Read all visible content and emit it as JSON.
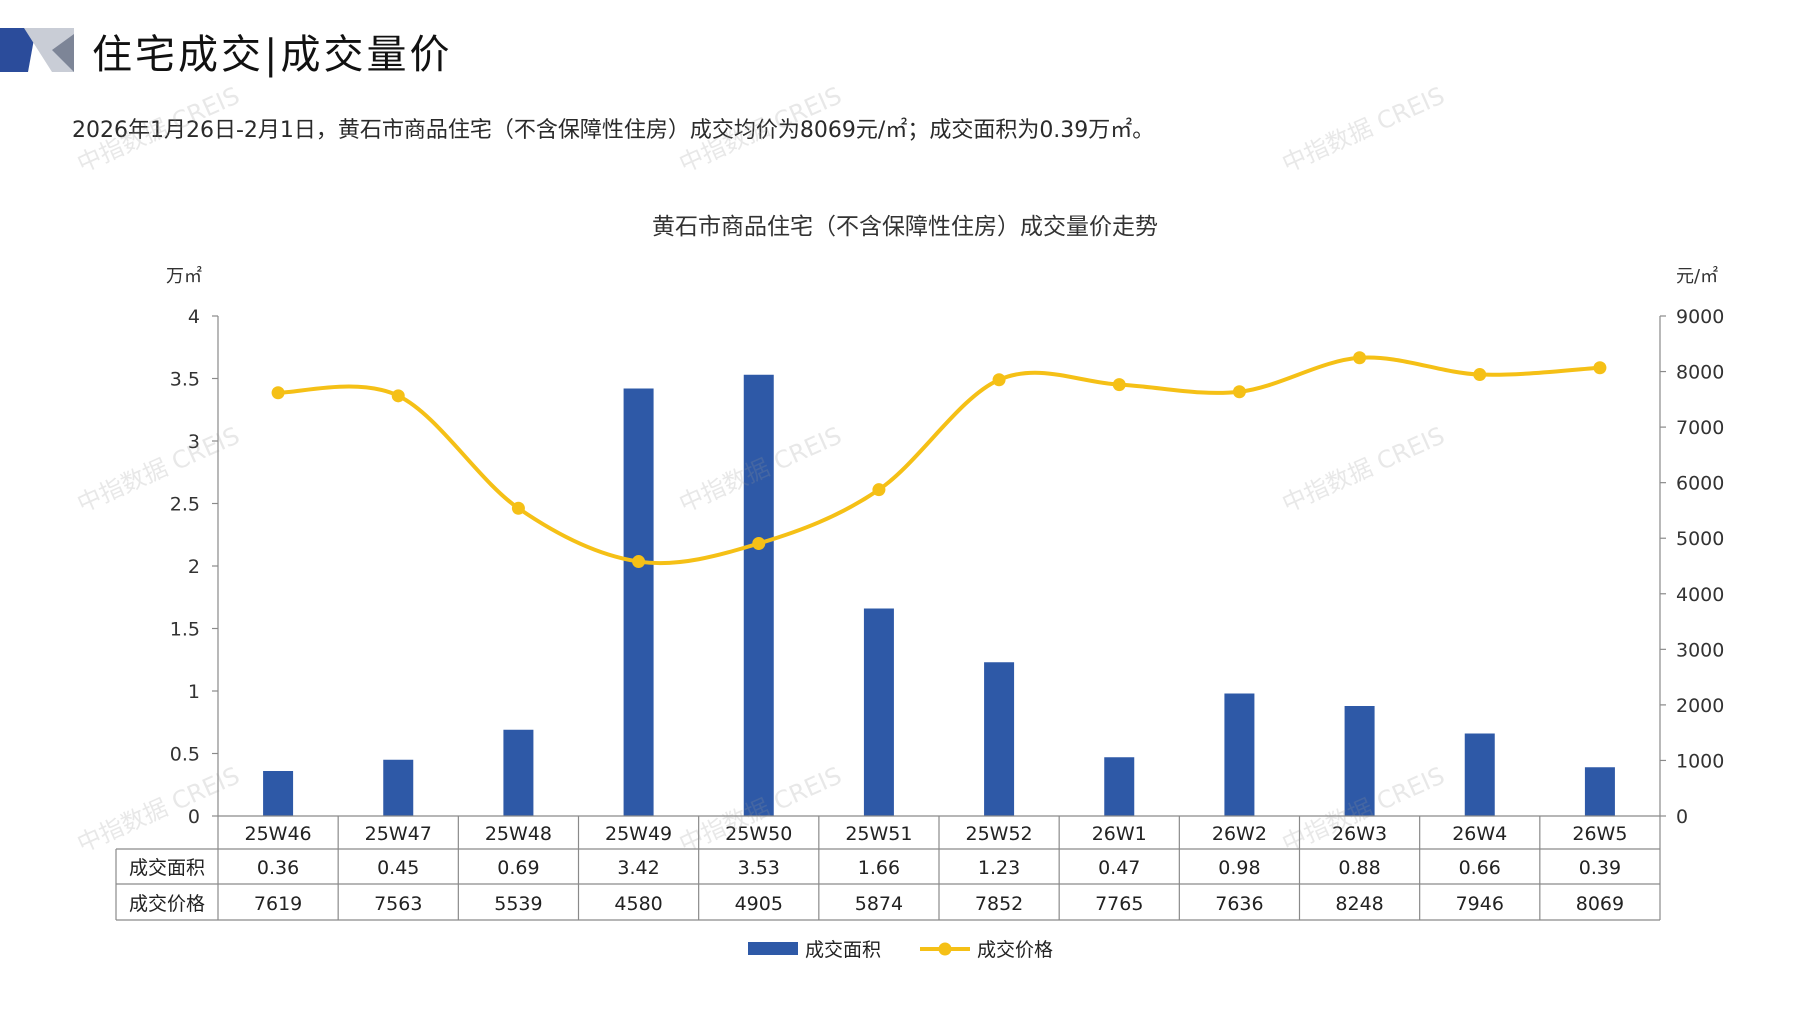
{
  "header": {
    "title": "住宅成交|成交量价",
    "summary": "2026年1月26日-2月1日，黄石市商品住宅（不含保障性住房）成交均价为8069元/㎡；成交面积为0.39万㎡。"
  },
  "watermark_text": "中指数据 CREIS",
  "colors": {
    "bar": "#2E59A7",
    "line": "#F5C016",
    "logo_dark": "#2B4C9B",
    "logo_light": "#C9CDD6"
  },
  "chart_data": {
    "type": "bar+line",
    "title": "黄石市商品住宅（不含保障性住房）成交量价走势",
    "left_unit": "万㎡",
    "right_unit": "元/㎡",
    "categories": [
      "25W46",
      "25W47",
      "25W48",
      "25W49",
      "25W50",
      "25W51",
      "25W52",
      "26W1",
      "26W2",
      "26W3",
      "26W4",
      "26W5"
    ],
    "series": [
      {
        "name": "成交面积",
        "type": "bar",
        "axis": "left",
        "values": [
          0.36,
          0.45,
          0.69,
          3.42,
          3.53,
          1.66,
          1.23,
          0.47,
          0.98,
          0.88,
          0.66,
          0.39
        ],
        "labels": [
          "0.36",
          "0.45",
          "0.69",
          "3.42",
          "3.53",
          "1.66",
          "1.23",
          "0.47",
          "0.98",
          "0.88",
          "0.66",
          "0.39"
        ]
      },
      {
        "name": "成交价格",
        "type": "line",
        "axis": "right",
        "values": [
          7619,
          7563,
          5539,
          4580,
          4905,
          5874,
          7852,
          7765,
          7636,
          8248,
          7946,
          8069
        ],
        "labels": [
          "7619",
          "7563",
          "5539",
          "4580",
          "4905",
          "5874",
          "7852",
          "7765",
          "7636",
          "8248",
          "7946",
          "8069"
        ]
      }
    ],
    "left_axis": {
      "range": [
        0,
        4
      ],
      "ticks": [
        0,
        0.5,
        1,
        1.5,
        2,
        2.5,
        3,
        3.5,
        4
      ],
      "tick_labels": [
        "0",
        "0.5",
        "1",
        "1.5",
        "2",
        "2.5",
        "3",
        "3.5",
        "4"
      ]
    },
    "right_axis": {
      "range": [
        0,
        9000
      ],
      "ticks": [
        0,
        1000,
        2000,
        3000,
        4000,
        5000,
        6000,
        7000,
        8000,
        9000
      ],
      "tick_labels": [
        "0",
        "1000",
        "2000",
        "3000",
        "4000",
        "5000",
        "6000",
        "7000",
        "8000",
        "9000"
      ]
    },
    "grid": false,
    "legend_position": "bottom-center",
    "data_table": true
  }
}
